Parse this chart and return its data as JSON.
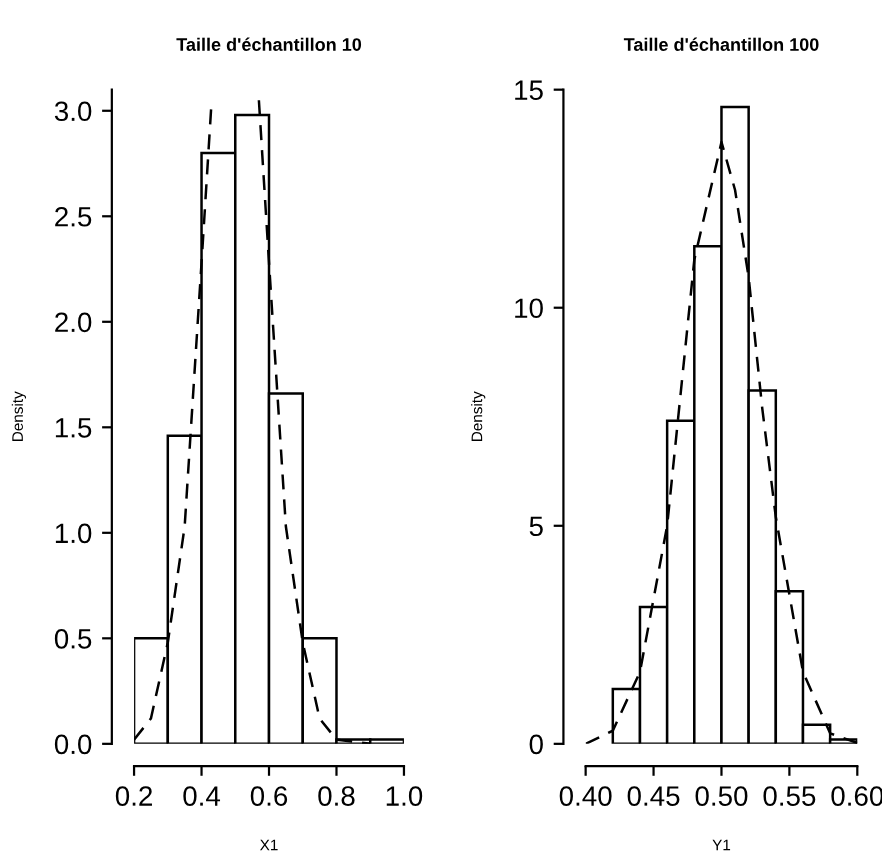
{
  "chart_data": [
    {
      "type": "histogram",
      "title": "Taille d'échantillon 10",
      "xlabel": "X1",
      "ylabel": "Density",
      "color": "#ffffff",
      "bins": [
        0.2,
        0.3,
        0.4,
        0.5,
        0.6,
        0.7,
        0.8,
        0.9,
        1.0
      ],
      "values": [
        0.5,
        1.46,
        2.8,
        2.98,
        1.66,
        0.5,
        0.02,
        0.02
      ],
      "series": [
        {
          "type": "line",
          "line_style": "dashed",
          "color": "#000000",
          "x": [
            0.2,
            0.25,
            0.3,
            0.35,
            0.4,
            0.43,
            0.5,
            0.57,
            0.6,
            0.65,
            0.7,
            0.75,
            0.8,
            0.85,
            0.9
          ],
          "values": [
            0.02,
            0.12,
            0.48,
            1.03,
            2.28,
            3.05,
            null,
            3.05,
            2.28,
            1.03,
            0.48,
            0.12,
            0.02,
            0.01,
            0
          ]
        }
      ],
      "xlim": [
        0.2,
        1.0
      ],
      "ylim": [
        0,
        3.1
      ],
      "xticks": [
        {
          "value": 0.2,
          "label": "0.2"
        },
        {
          "value": 0.4,
          "label": "0.4"
        },
        {
          "value": 0.6,
          "label": "0.6"
        },
        {
          "value": 0.8,
          "label": "0.8"
        },
        {
          "value": 1.0,
          "label": "1.0"
        }
      ],
      "yticks": [
        {
          "value": 0,
          "label": "0.0"
        },
        {
          "value": 0.5,
          "label": "0.5"
        },
        {
          "value": 1.0,
          "label": "1.0"
        },
        {
          "value": 1.5,
          "label": "1.5"
        },
        {
          "value": 2.0,
          "label": "2.0"
        },
        {
          "value": 2.5,
          "label": "2.5"
        },
        {
          "value": 3.0,
          "label": "3.0"
        }
      ],
      "grid": false,
      "legend": false
    },
    {
      "type": "histogram",
      "title": "Taille d'échantillon 100",
      "xlabel": "Y1",
      "ylabel": "Density",
      "color": "#ffffff",
      "bins": [
        0.42,
        0.44,
        0.46,
        0.48,
        0.5,
        0.52,
        0.54,
        0.56,
        0.58,
        0.6
      ],
      "values": [
        1.26,
        3.14,
        7.41,
        11.41,
        14.6,
        8.1,
        3.5,
        0.44,
        0.1
      ],
      "series": [
        {
          "type": "line",
          "line_style": "dashed",
          "color": "#000000",
          "x": [
            0.4,
            0.42,
            0.44,
            0.46,
            0.48,
            0.5,
            0.51,
            0.52,
            0.53,
            0.54,
            0.56,
            0.58,
            0.6
          ],
          "values": [
            0,
            0.3,
            1.65,
            5.0,
            11.1,
            13.8,
            12.7,
            10.7,
            7.7,
            5.2,
            1.65,
            0.24,
            0.02
          ]
        }
      ],
      "xlim": [
        0.4,
        0.6
      ],
      "ylim": [
        0,
        15
      ],
      "xticks": [
        {
          "value": 0.4,
          "label": "0.40"
        },
        {
          "value": 0.45,
          "label": "0.45"
        },
        {
          "value": 0.5,
          "label": "0.50"
        },
        {
          "value": 0.55,
          "label": "0.55"
        },
        {
          "value": 0.6,
          "label": "0.60"
        }
      ],
      "yticks": [
        0,
        5,
        10,
        15
      ],
      "grid": false,
      "legend": false
    }
  ]
}
